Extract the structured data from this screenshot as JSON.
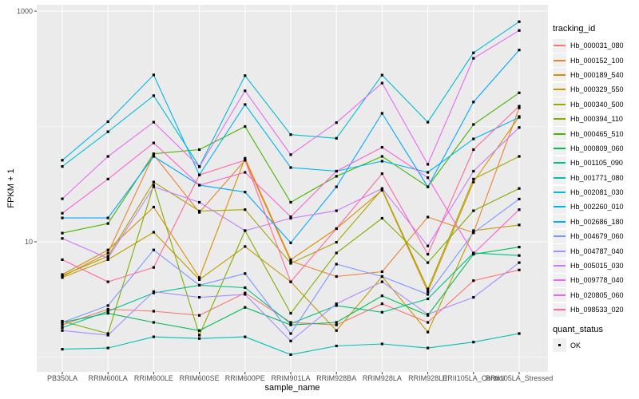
{
  "chart_data": {
    "type": "line",
    "title": "",
    "xlabel": "sample_name",
    "ylabel": "FPKM + 1",
    "y_scale": "log10",
    "grid": true,
    "panel_bg": "#EBEBEB",
    "grid_color": "#FFFFFF",
    "tick_label_color": "#4D4D4D",
    "y_tick_labels": [
      {
        "value": 10,
        "label": "10"
      },
      {
        "value": 1000,
        "label": "1000"
      }
    ],
    "y_major_gridlines": [
      10,
      1000
    ],
    "y_minor_gridlines": [
      1,
      100
    ],
    "ylim": [
      0.75,
      1130
    ],
    "categories": [
      "PB350LA",
      "RRIM600LA",
      "RRIM600LE",
      "RRIM600SE",
      "RRIM600PE",
      "RRIM901LA",
      "RRIM928BA",
      "RRIM928LA",
      "RRIM928LE",
      "RRII105LA_Control",
      "RRII105LA_Stressed"
    ],
    "legend": {
      "title": "tracking_id",
      "position": "right"
    },
    "legend2": {
      "title": "quant_status",
      "items": [
        {
          "label": "OK",
          "marker": "black-square"
        }
      ]
    },
    "series": [
      {
        "name": "Hb_000031_080",
        "color": "#F8766D",
        "values": [
          1.9,
          2.6,
          2.5,
          2.3,
          3.6,
          2.0,
          1.9,
          2.9,
          2.0,
          4.6,
          5.7
        ]
      },
      {
        "name": "Hb_000152_100",
        "color": "#EA8331",
        "values": [
          5.0,
          8.0,
          57,
          18,
          51,
          6.8,
          5.0,
          5.5,
          16.4,
          12,
          145
        ]
      },
      {
        "name": "Hb_000189_540",
        "color": "#D89000",
        "values": [
          5.2,
          8.5,
          20,
          4.9,
          53,
          7.0,
          13,
          28,
          3.7,
          33,
          122
        ]
      },
      {
        "name": "Hb_000329_550",
        "color": "#C19B00",
        "values": [
          4.9,
          7.0,
          12.1,
          4.7,
          9.1,
          4.5,
          1.7,
          5.0,
          1.65,
          12.5,
          14
        ]
      },
      {
        "name": "Hb_000340_500",
        "color": "#A5A500",
        "values": [
          5.1,
          7.5,
          33,
          18.5,
          19,
          6.5,
          9.9,
          28.5,
          3.9,
          35,
          55
        ]
      },
      {
        "name": "Hb_000394_110",
        "color": "#7FAD00",
        "values": [
          2.05,
          1.6,
          31,
          1.55,
          12.5,
          2.4,
          8.0,
          16,
          6.6,
          18.6,
          29
        ]
      },
      {
        "name": "Hb_000465_510",
        "color": "#45B500",
        "values": [
          11.9,
          14.4,
          58,
          63,
          100,
          22,
          37,
          55,
          30,
          104,
          196
        ]
      },
      {
        "name": "Hb_000809_060",
        "color": "#00BC53",
        "values": [
          2.0,
          2.4,
          2.0,
          1.7,
          2.7,
          1.9,
          2.0,
          3.4,
          2.3,
          7.8,
          9.0
        ]
      },
      {
        "name": "Hb_001105_090",
        "color": "#00C08A",
        "values": [
          1.8,
          2.5,
          3.6,
          4.2,
          4.0,
          1.95,
          2.8,
          2.45,
          3.2,
          8.0,
          7.6
        ]
      },
      {
        "name": "Hb_001771_080",
        "color": "#00C0B2",
        "values": [
          1.17,
          1.2,
          1.5,
          1.45,
          1.5,
          1.05,
          1.25,
          1.3,
          1.2,
          1.35,
          1.6
        ]
      },
      {
        "name": "Hb_002081_030",
        "color": "#00BDD3",
        "values": [
          45,
          90,
          185,
          45,
          276,
          85,
          79,
          279,
          109,
          435,
          810
        ]
      },
      {
        "name": "Hb_002260_010",
        "color": "#00B5EE",
        "values": [
          51,
          110,
          280,
          38,
          155,
          44,
          41,
          50,
          40,
          78,
          120
        ]
      },
      {
        "name": "Hb_002686_180",
        "color": "#00A8FF",
        "values": [
          16.1,
          16.1,
          55,
          31,
          27,
          9.8,
          30,
          130,
          30,
          163,
          460
        ]
      },
      {
        "name": "Hb_004679_060",
        "color": "#7C96FF",
        "values": [
          2.0,
          2.8,
          8.5,
          4.2,
          5.3,
          1.6,
          6.4,
          5.0,
          3.5,
          12,
          23.5
        ]
      },
      {
        "name": "Hb_004787_040",
        "color": "#A98CFF",
        "values": [
          1.7,
          1.55,
          3.7,
          3.3,
          3.5,
          1.38,
          2.9,
          4.5,
          2.35,
          3.3,
          6.6
        ]
      },
      {
        "name": "Hb_005015_030",
        "color": "#C77CFF",
        "values": [
          10.7,
          7.2,
          30,
          22,
          12.5,
          16,
          18.6,
          29,
          9.2,
          41,
          98
        ]
      },
      {
        "name": "Hb_009778_040",
        "color": "#E76BF3",
        "values": [
          23.6,
          55,
          109,
          44.7,
          204,
          57,
          108,
          238,
          47,
          390,
          680
        ]
      },
      {
        "name": "Hb_020805_060",
        "color": "#FB61D7",
        "values": [
          17.7,
          35,
          72,
          31,
          40,
          16.5,
          41,
          66,
          36,
          7.9,
          19
        ]
      },
      {
        "name": "Hb_098533_020",
        "color": "#FF68A1",
        "values": [
          7.0,
          4.5,
          6.0,
          38,
          51,
          4.5,
          13,
          39,
          7.8,
          63,
          150
        ]
      }
    ]
  }
}
